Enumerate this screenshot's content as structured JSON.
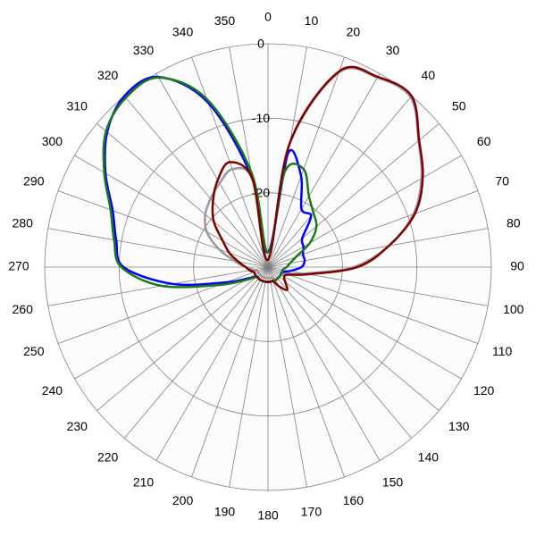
{
  "chart_data": {
    "type": "polar",
    "x": [
      0,
      10,
      20,
      30,
      40,
      50,
      60,
      70,
      80,
      90,
      100,
      110,
      120,
      130,
      140,
      150,
      160,
      170,
      180,
      190,
      200,
      210,
      220,
      230,
      240,
      250,
      260,
      270,
      280,
      290,
      300,
      310,
      320,
      330,
      340,
      350
    ],
    "xticks": [
      0,
      10,
      20,
      30,
      40,
      50,
      60,
      70,
      80,
      90,
      100,
      110,
      120,
      130,
      140,
      150,
      160,
      170,
      180,
      190,
      200,
      210,
      220,
      230,
      240,
      250,
      260,
      270,
      280,
      290,
      300,
      310,
      320,
      330,
      340,
      350
    ],
    "ylim": [
      -30,
      0
    ],
    "yticks": [
      -20,
      -10,
      0
    ],
    "grid": true,
    "series": [
      {
        "color": "#999999",
        "values": [
          -29,
          -13.2,
          -2.2,
          -0.6,
          -0.2,
          -3.6,
          -6.2,
          -9.2,
          -13.5,
          -18.5,
          -25,
          -27.5,
          -28,
          -28,
          -28,
          -28,
          -28.5,
          -28.5,
          -28.5,
          -28.5,
          -28.5,
          -28.5,
          -28.5,
          -28.5,
          -28.5,
          -28.5,
          -28,
          -27,
          -25.5,
          -23,
          -20.5,
          -19,
          -18,
          -17,
          -16,
          -18
        ]
      },
      {
        "color": "#0000ff",
        "values": [
          -28,
          -14.5,
          -17,
          -21,
          -21,
          -24,
          -24.5,
          -25,
          -25,
          -25.5,
          -27,
          -28,
          -28,
          -28,
          -28,
          -28,
          -28,
          -28,
          -28,
          -28,
          -28,
          -28,
          -28,
          -28,
          -27,
          -24,
          -17,
          -10.6,
          -9.3,
          -7.8,
          -4.8,
          -1.8,
          0,
          -0.5,
          -6.5,
          -18
        ]
      },
      {
        "color": "#1a7a1a",
        "values": [
          -28,
          -17,
          -16,
          -19,
          -20.5,
          -21.5,
          -23.5,
          -26,
          -27,
          -27.5,
          -28,
          -28,
          -28,
          -28,
          -28,
          -28,
          -28,
          -28,
          -28,
          -28,
          -28,
          -28,
          -28,
          -28,
          -26.5,
          -23,
          -15.5,
          -10.3,
          -9,
          -7.5,
          -4.6,
          -1.6,
          -0.3,
          -0.6,
          -6,
          -17
        ]
      },
      {
        "color": "#7f0000",
        "values": [
          -29,
          -13,
          -2,
          -0.5,
          0,
          -3.5,
          -6,
          -9,
          -13.5,
          -18,
          -24.5,
          -27,
          -27.5,
          -27,
          -26,
          -27,
          -28,
          -28,
          -28,
          -28,
          -28,
          -28,
          -28,
          -28,
          -28,
          -28,
          -27.5,
          -27,
          -26,
          -24.5,
          -23,
          -20.5,
          -18.5,
          -16.5,
          -15,
          -18
        ]
      }
    ]
  }
}
